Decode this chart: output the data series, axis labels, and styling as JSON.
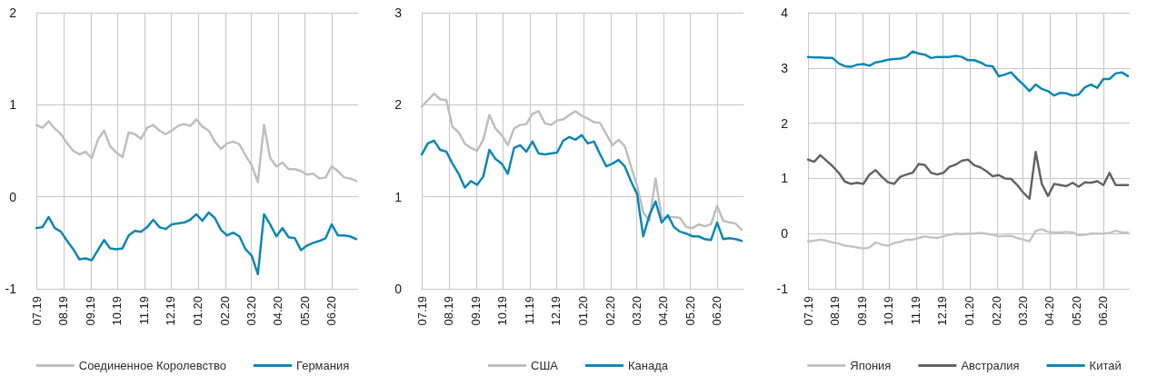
{
  "chart_data": [
    {
      "type": "line",
      "x": [
        "2019-07-01",
        "2019-07-08",
        "2019-07-15",
        "2019-07-22",
        "2019-07-29",
        "2019-08-05",
        "2019-08-12",
        "2019-08-19",
        "2019-08-26",
        "2019-09-02",
        "2019-09-09",
        "2019-09-16",
        "2019-09-23",
        "2019-09-30",
        "2019-10-07",
        "2019-10-14",
        "2019-10-21",
        "2019-10-28",
        "2019-11-04",
        "2019-11-11",
        "2019-11-18",
        "2019-11-25",
        "2019-12-02",
        "2019-12-09",
        "2019-12-16",
        "2019-12-23",
        "2019-12-30",
        "2020-01-06",
        "2020-01-13",
        "2020-01-20",
        "2020-01-27",
        "2020-02-03",
        "2020-02-10",
        "2020-02-17",
        "2020-02-24",
        "2020-03-02",
        "2020-03-09",
        "2020-03-16",
        "2020-03-23",
        "2020-03-30",
        "2020-04-06",
        "2020-04-13",
        "2020-04-20",
        "2020-04-27",
        "2020-05-04",
        "2020-05-11",
        "2020-05-18",
        "2020-05-25",
        "2020-06-01",
        "2020-06-08",
        "2020-06-15",
        "2020-06-22",
        "2020-06-29"
      ],
      "xlim": [
        "2019-07-01",
        "2020-07-01"
      ],
      "xticks": [
        {
          "value": "2019-07-01",
          "label": "07.19"
        },
        {
          "value": "2019-08-01",
          "label": "08.19"
        },
        {
          "value": "2019-09-01",
          "label": "09.19"
        },
        {
          "value": "2019-10-01",
          "label": "10.19"
        },
        {
          "value": "2019-11-01",
          "label": "11.19"
        },
        {
          "value": "2019-12-01",
          "label": "12.19"
        },
        {
          "value": "2020-01-01",
          "label": "01.20"
        },
        {
          "value": "2020-02-01",
          "label": "02.20"
        },
        {
          "value": "2020-03-01",
          "label": "03.20"
        },
        {
          "value": "2020-04-01",
          "label": "04.20"
        },
        {
          "value": "2020-05-01",
          "label": "05.20"
        },
        {
          "value": "2020-06-01",
          "label": "06.20"
        }
      ],
      "ylim": [
        -1,
        2
      ],
      "yticks": [
        -1,
        0,
        1,
        2
      ],
      "grid": true,
      "legend": "bottom",
      "series": [
        {
          "name": "Соединенное Королевство",
          "color": "#bfbfbf",
          "values": [
            0.78,
            0.75,
            0.82,
            0.74,
            0.68,
            0.58,
            0.5,
            0.46,
            0.49,
            0.42,
            0.62,
            0.72,
            0.55,
            0.48,
            0.43,
            0.7,
            0.68,
            0.63,
            0.75,
            0.78,
            0.72,
            0.68,
            0.72,
            0.77,
            0.79,
            0.77,
            0.84,
            0.76,
            0.72,
            0.6,
            0.52,
            0.58,
            0.6,
            0.57,
            0.45,
            0.34,
            0.16,
            0.78,
            0.42,
            0.33,
            0.37,
            0.3,
            0.3,
            0.28,
            0.24,
            0.25,
            0.2,
            0.21,
            0.33,
            0.28,
            0.21,
            0.2,
            0.17
          ]
        },
        {
          "name": "Германия",
          "color": "#0e88b8",
          "values": [
            -0.34,
            -0.33,
            -0.22,
            -0.34,
            -0.38,
            -0.48,
            -0.57,
            -0.68,
            -0.67,
            -0.69,
            -0.58,
            -0.47,
            -0.56,
            -0.57,
            -0.56,
            -0.42,
            -0.37,
            -0.38,
            -0.33,
            -0.25,
            -0.33,
            -0.35,
            -0.3,
            -0.29,
            -0.28,
            -0.25,
            -0.19,
            -0.26,
            -0.17,
            -0.23,
            -0.36,
            -0.42,
            -0.39,
            -0.43,
            -0.57,
            -0.64,
            -0.84,
            -0.19,
            -0.3,
            -0.43,
            -0.34,
            -0.44,
            -0.45,
            -0.58,
            -0.53,
            -0.5,
            -0.48,
            -0.45,
            -0.3,
            -0.42,
            -0.42,
            -0.43,
            -0.46
          ]
        }
      ]
    },
    {
      "type": "line",
      "x": [
        "2019-07-01",
        "2019-07-08",
        "2019-07-15",
        "2019-07-22",
        "2019-07-29",
        "2019-08-05",
        "2019-08-12",
        "2019-08-19",
        "2019-08-26",
        "2019-09-02",
        "2019-09-09",
        "2019-09-16",
        "2019-09-23",
        "2019-09-30",
        "2019-10-07",
        "2019-10-14",
        "2019-10-21",
        "2019-10-28",
        "2019-11-04",
        "2019-11-11",
        "2019-11-18",
        "2019-11-25",
        "2019-12-02",
        "2019-12-09",
        "2019-12-16",
        "2019-12-23",
        "2019-12-30",
        "2020-01-06",
        "2020-01-13",
        "2020-01-20",
        "2020-01-27",
        "2020-02-03",
        "2020-02-10",
        "2020-02-17",
        "2020-02-24",
        "2020-03-02",
        "2020-03-09",
        "2020-03-16",
        "2020-03-23",
        "2020-03-30",
        "2020-04-06",
        "2020-04-13",
        "2020-04-20",
        "2020-04-27",
        "2020-05-04",
        "2020-05-11",
        "2020-05-18",
        "2020-05-25",
        "2020-06-01",
        "2020-06-08",
        "2020-06-15",
        "2020-06-22",
        "2020-06-29"
      ],
      "xlim": [
        "2019-07-01",
        "2020-07-01"
      ],
      "xticks": [
        {
          "value": "2019-07-01",
          "label": "07.19"
        },
        {
          "value": "2019-08-01",
          "label": "08.19"
        },
        {
          "value": "2019-09-01",
          "label": "09.19"
        },
        {
          "value": "2019-10-01",
          "label": "10.19"
        },
        {
          "value": "2019-11-01",
          "label": "11.19"
        },
        {
          "value": "2019-12-01",
          "label": "12.19"
        },
        {
          "value": "2020-01-01",
          "label": "01.20"
        },
        {
          "value": "2020-02-01",
          "label": "02.20"
        },
        {
          "value": "2020-03-01",
          "label": "03.20"
        },
        {
          "value": "2020-04-01",
          "label": "04.20"
        },
        {
          "value": "2020-05-01",
          "label": "05.20"
        },
        {
          "value": "2020-06-01",
          "label": "06.20"
        }
      ],
      "ylim": [
        0,
        3
      ],
      "yticks": [
        0,
        1,
        2,
        3
      ],
      "grid": true,
      "legend": "bottom",
      "series": [
        {
          "name": "США",
          "color": "#bfbfbf",
          "values": [
            1.98,
            2.05,
            2.12,
            2.06,
            2.05,
            1.76,
            1.7,
            1.58,
            1.53,
            1.5,
            1.62,
            1.89,
            1.74,
            1.67,
            1.56,
            1.74,
            1.78,
            1.79,
            1.9,
            1.93,
            1.8,
            1.78,
            1.83,
            1.84,
            1.89,
            1.93,
            1.88,
            1.85,
            1.81,
            1.8,
            1.68,
            1.56,
            1.62,
            1.55,
            1.33,
            1.12,
            0.83,
            0.74,
            1.2,
            0.77,
            0.78,
            0.78,
            0.77,
            0.67,
            0.66,
            0.7,
            0.68,
            0.7,
            0.9,
            0.74,
            0.72,
            0.71,
            0.64
          ]
        },
        {
          "name": "Канада",
          "color": "#0e88b8",
          "values": [
            1.46,
            1.58,
            1.61,
            1.51,
            1.49,
            1.36,
            1.25,
            1.1,
            1.17,
            1.13,
            1.22,
            1.51,
            1.41,
            1.36,
            1.25,
            1.53,
            1.56,
            1.49,
            1.6,
            1.47,
            1.46,
            1.47,
            1.48,
            1.61,
            1.65,
            1.62,
            1.67,
            1.58,
            1.6,
            1.46,
            1.33,
            1.36,
            1.4,
            1.33,
            1.17,
            1.03,
            0.57,
            0.8,
            0.95,
            0.72,
            0.8,
            0.67,
            0.62,
            0.6,
            0.57,
            0.57,
            0.54,
            0.53,
            0.72,
            0.54,
            0.55,
            0.54,
            0.52
          ]
        }
      ]
    },
    {
      "type": "line",
      "x": [
        "2019-07-01",
        "2019-07-08",
        "2019-07-15",
        "2019-07-22",
        "2019-07-29",
        "2019-08-05",
        "2019-08-12",
        "2019-08-19",
        "2019-08-26",
        "2019-09-02",
        "2019-09-09",
        "2019-09-16",
        "2019-09-23",
        "2019-09-30",
        "2019-10-07",
        "2019-10-14",
        "2019-10-21",
        "2019-10-28",
        "2019-11-04",
        "2019-11-11",
        "2019-11-18",
        "2019-11-25",
        "2019-12-02",
        "2019-12-09",
        "2019-12-16",
        "2019-12-23",
        "2019-12-30",
        "2020-01-06",
        "2020-01-13",
        "2020-01-20",
        "2020-01-27",
        "2020-02-03",
        "2020-02-10",
        "2020-02-17",
        "2020-02-24",
        "2020-03-02",
        "2020-03-09",
        "2020-03-16",
        "2020-03-23",
        "2020-03-30",
        "2020-04-06",
        "2020-04-13",
        "2020-04-20",
        "2020-04-27",
        "2020-05-04",
        "2020-05-11",
        "2020-05-18",
        "2020-05-25",
        "2020-06-01",
        "2020-06-08",
        "2020-06-15",
        "2020-06-22",
        "2020-06-29"
      ],
      "xlim": [
        "2019-07-01",
        "2020-07-01"
      ],
      "xticks": [
        {
          "value": "2019-07-01",
          "label": "07.19"
        },
        {
          "value": "2019-08-01",
          "label": "08.19"
        },
        {
          "value": "2019-09-01",
          "label": "09.19"
        },
        {
          "value": "2019-10-01",
          "label": "10.19"
        },
        {
          "value": "2019-11-01",
          "label": "11.19"
        },
        {
          "value": "2019-12-01",
          "label": "12.19"
        },
        {
          "value": "2020-01-01",
          "label": "01.20"
        },
        {
          "value": "2020-02-01",
          "label": "02.20"
        },
        {
          "value": "2020-03-01",
          "label": "03.20"
        },
        {
          "value": "2020-04-01",
          "label": "04.20"
        },
        {
          "value": "2020-05-01",
          "label": "05.20"
        },
        {
          "value": "2020-06-01",
          "label": "06.20"
        }
      ],
      "ylim": [
        -1,
        4
      ],
      "yticks": [
        -1,
        0,
        1,
        2,
        3,
        4
      ],
      "grid": true,
      "legend": "bottom",
      "series": [
        {
          "name": "Япония",
          "color": "#c4c4c4",
          "values": [
            -0.14,
            -0.13,
            -0.11,
            -0.13,
            -0.16,
            -0.18,
            -0.22,
            -0.23,
            -0.25,
            -0.27,
            -0.25,
            -0.16,
            -0.2,
            -0.22,
            -0.17,
            -0.15,
            -0.11,
            -0.11,
            -0.08,
            -0.05,
            -0.07,
            -0.08,
            -0.05,
            -0.02,
            0,
            -0.01,
            0,
            0,
            0.01,
            0,
            -0.02,
            -0.05,
            -0.04,
            -0.04,
            -0.08,
            -0.11,
            -0.14,
            0.05,
            0.08,
            0.03,
            0.02,
            0.02,
            0.03,
            0.02,
            -0.03,
            -0.02,
            0,
            0,
            0,
            0.01,
            0.05,
            0.02,
            0.02
          ]
        },
        {
          "name": "Австралия",
          "color": "#666666",
          "values": [
            1.34,
            1.3,
            1.42,
            1.32,
            1.22,
            1.1,
            0.94,
            0.9,
            0.92,
            0.9,
            1.07,
            1.15,
            1.03,
            0.93,
            0.9,
            1.03,
            1.07,
            1.1,
            1.26,
            1.24,
            1.1,
            1.07,
            1.1,
            1.21,
            1.25,
            1.32,
            1.34,
            1.24,
            1.2,
            1.13,
            1.04,
            1.06,
            1.0,
            0.99,
            0.88,
            0.74,
            0.63,
            1.48,
            0.9,
            0.68,
            0.9,
            0.88,
            0.86,
            0.92,
            0.85,
            0.93,
            0.92,
            0.95,
            0.88,
            1.1,
            0.88,
            0.88,
            0.88
          ]
        },
        {
          "name": "Китай",
          "color": "#0e88b8",
          "values": [
            3.2,
            3.19,
            3.19,
            3.18,
            3.18,
            3.08,
            3.03,
            3.02,
            3.06,
            3.07,
            3.04,
            3.1,
            3.12,
            3.15,
            3.16,
            3.17,
            3.2,
            3.3,
            3.26,
            3.24,
            3.18,
            3.2,
            3.2,
            3.2,
            3.22,
            3.2,
            3.14,
            3.14,
            3.1,
            3.04,
            3.03,
            2.85,
            2.88,
            2.92,
            2.8,
            2.7,
            2.58,
            2.7,
            2.62,
            2.58,
            2.5,
            2.55,
            2.54,
            2.5,
            2.52,
            2.65,
            2.7,
            2.64,
            2.8,
            2.8,
            2.9,
            2.92,
            2.85
          ]
        }
      ]
    }
  ]
}
